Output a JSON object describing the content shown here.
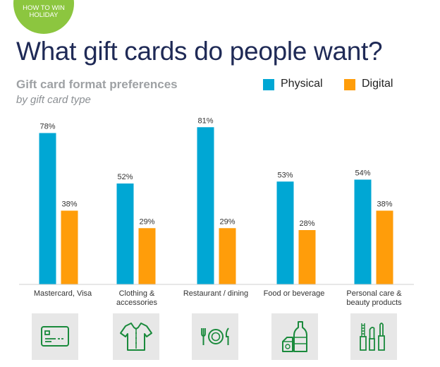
{
  "badge": {
    "text": "HOW TO WIN HOLIDAY"
  },
  "title": "What gift cards do people want?",
  "subtitle": "Gift card format preferences",
  "subtitle2": "by gift card type",
  "colors": {
    "physical": "#00a7d4",
    "digital": "#ff9d0a",
    "title": "#1f2a56",
    "badge": "#8cc63f",
    "icon": "#1a8a3c"
  },
  "icons": [
    "credit-card-icon",
    "shirt-icon",
    "dining-icon",
    "food-beverage-icon",
    "cosmetics-icon"
  ],
  "chart_data": {
    "type": "bar",
    "categories": [
      "Mastercard, Visa",
      "Clothing & accessories",
      "Restaurant / dining",
      "Food or beverage",
      "Personal care & beauty products"
    ],
    "series": [
      {
        "name": "Physical",
        "values": [
          78,
          52,
          81,
          53,
          54
        ],
        "labels": [
          "78%",
          "52%",
          "81%",
          "53%",
          "54%"
        ]
      },
      {
        "name": "Digital",
        "values": [
          38,
          29,
          29,
          28,
          38
        ],
        "labels": [
          "38%",
          "29%",
          "29%",
          "28%",
          "38%"
        ]
      }
    ],
    "ylim": [
      0,
      100
    ],
    "legend": "top-right",
    "grid": false
  }
}
